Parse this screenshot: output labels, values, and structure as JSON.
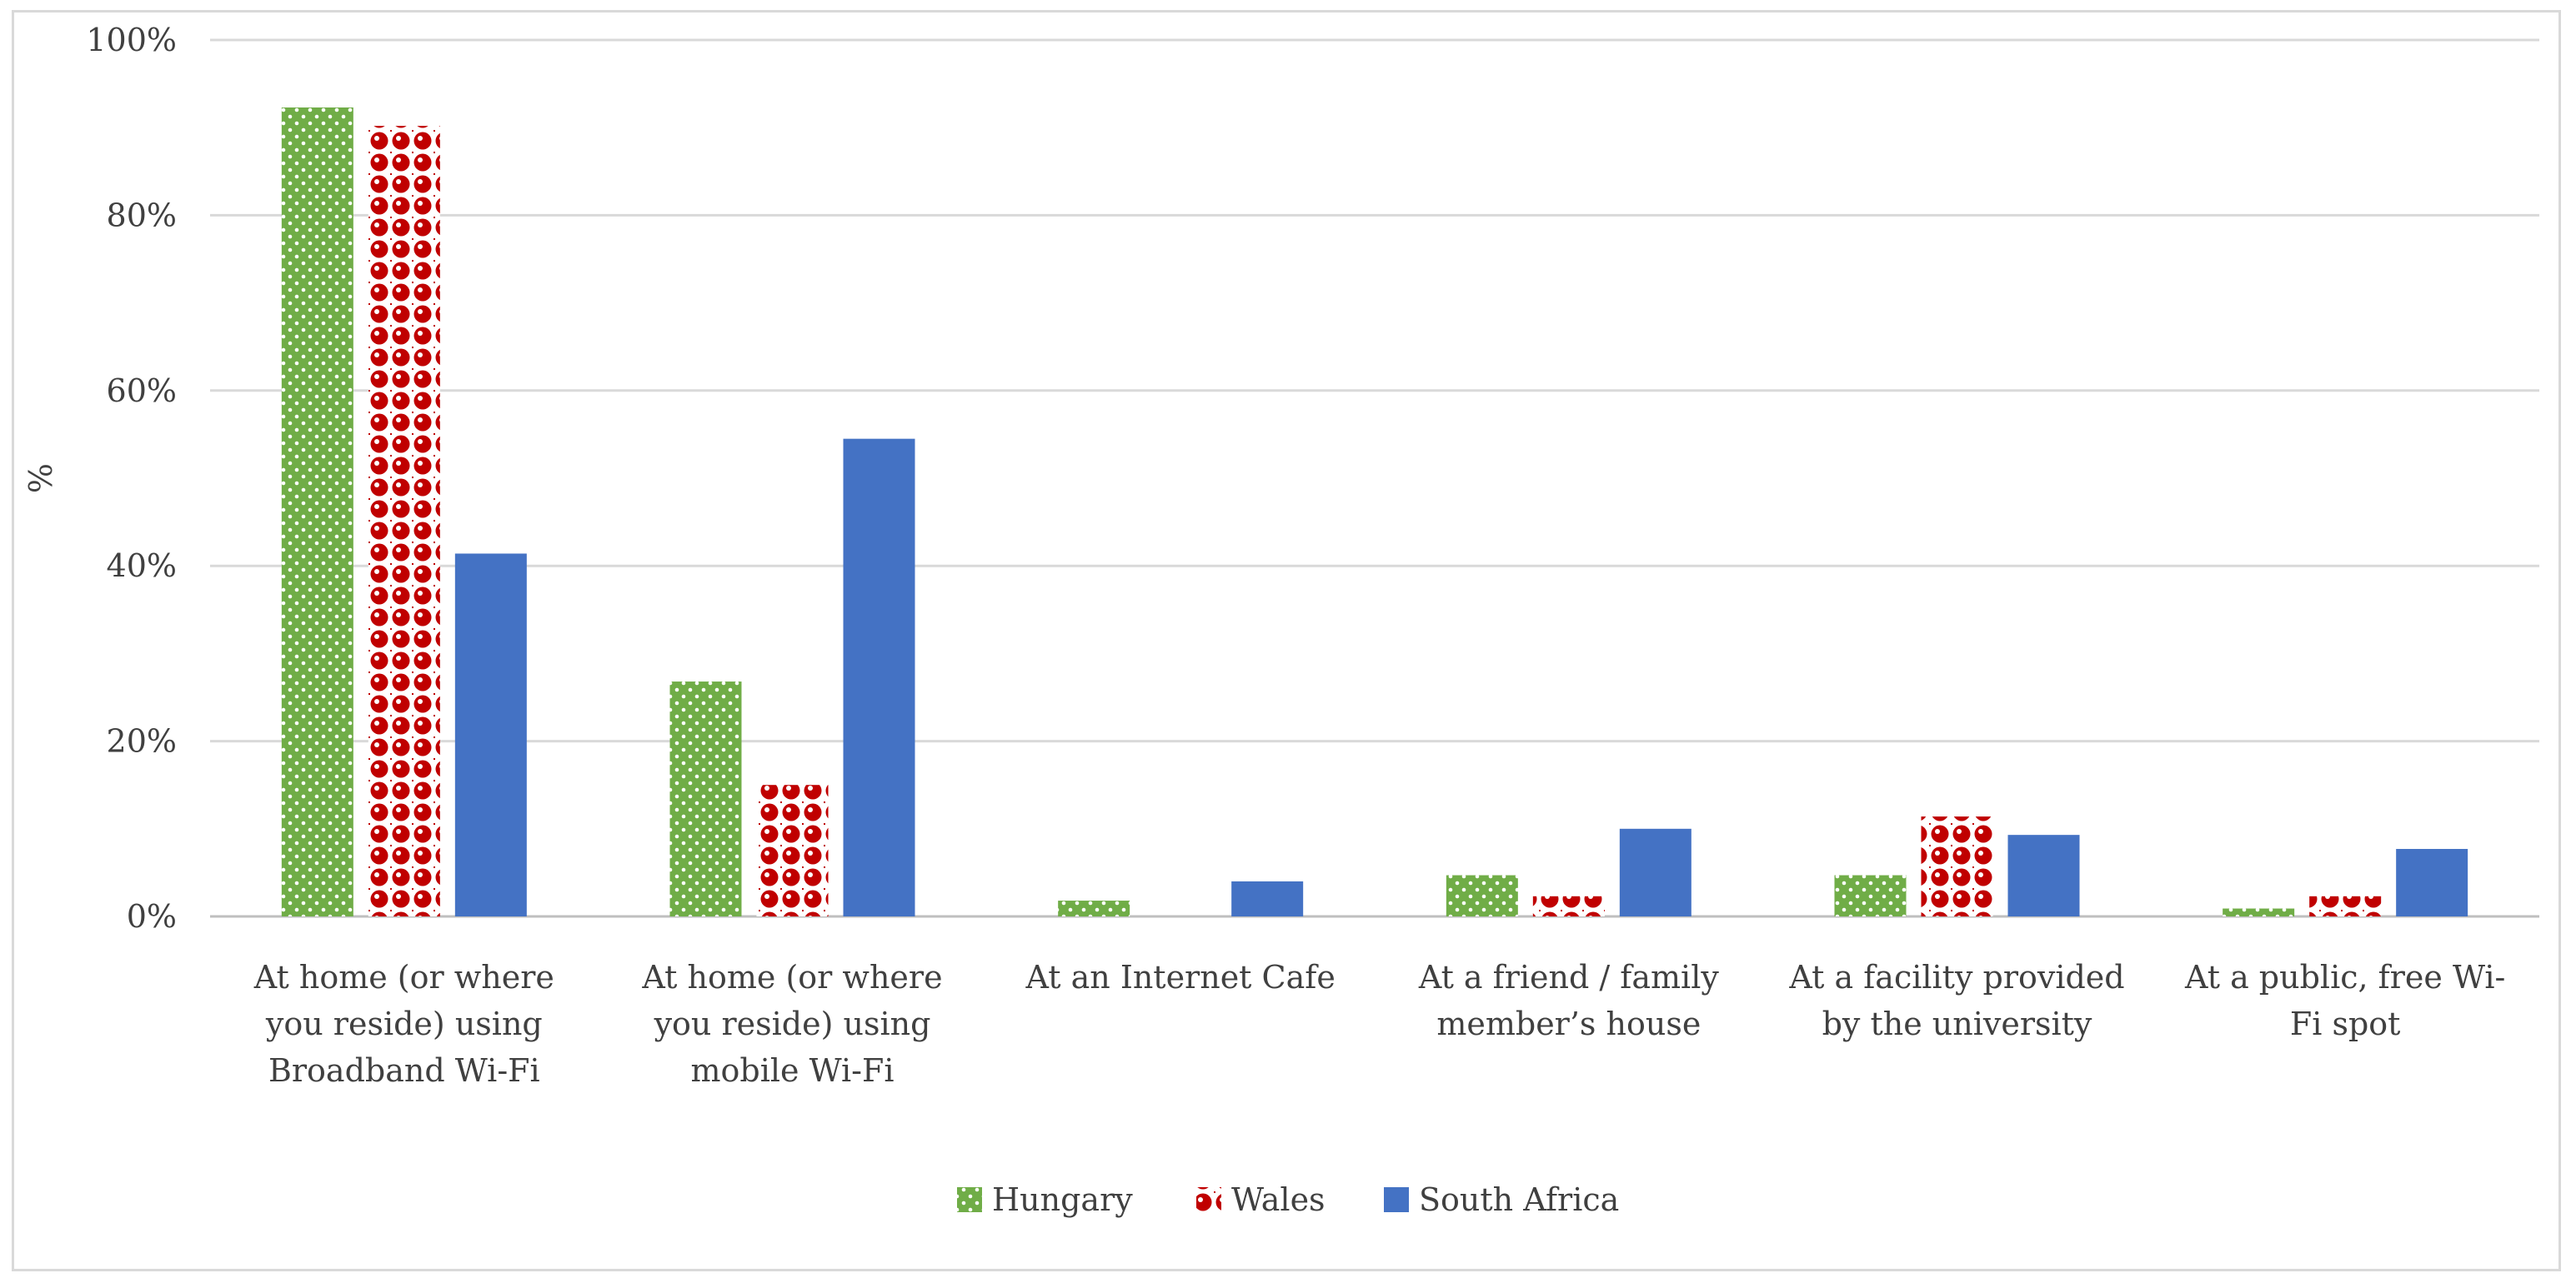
{
  "chart_data": {
    "type": "bar",
    "title": "",
    "xlabel": "",
    "ylabel": "%",
    "ylim": [
      0,
      100
    ],
    "yticks": [
      "0%",
      "20%",
      "40%",
      "60%",
      "80%",
      "100%"
    ],
    "grid": true,
    "legend_position": "bottom",
    "categories": [
      [
        "At home (or where",
        "you reside) using",
        "Broadband Wi-Fi"
      ],
      [
        "At home (or where",
        "you reside) using",
        "mobile Wi-Fi"
      ],
      [
        "At an Internet Cafe"
      ],
      [
        "At a friend / family",
        "member’s house"
      ],
      [
        "At a facility provided",
        "by the university"
      ],
      [
        "At a public, free Wi-",
        "Fi spot"
      ]
    ],
    "series": [
      {
        "name": "Hungary",
        "color": "#70ad47",
        "pattern": "dots",
        "values": [
          92.3,
          26.8,
          1.8,
          4.7,
          4.7,
          0.9
        ]
      },
      {
        "name": "Wales",
        "color": "#c00000",
        "pattern": "circles",
        "values": [
          90.2,
          15.0,
          0.0,
          2.3,
          11.4,
          2.3
        ]
      },
      {
        "name": "South Africa",
        "color": "#4472c4",
        "pattern": "solid",
        "values": [
          41.4,
          54.5,
          4.0,
          10.0,
          9.3,
          7.7
        ]
      }
    ]
  }
}
